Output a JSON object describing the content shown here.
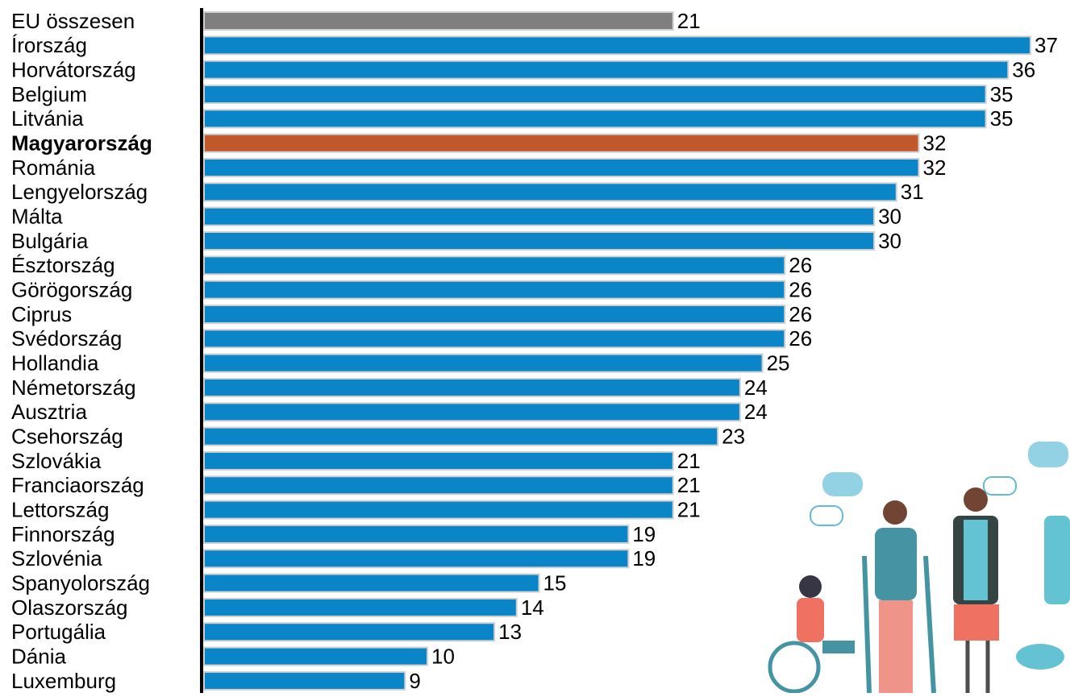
{
  "chart_data": {
    "type": "bar",
    "orientation": "horizontal",
    "categories": [
      "EU összesen",
      "Írország",
      "Horvátország",
      "Belgium",
      "Litvánia",
      "Magyarország",
      "Románia",
      "Lengyelország",
      "Málta",
      "Bulgária",
      "Észtország",
      "Görögország",
      "Ciprus",
      "Svédország",
      "Hollandia",
      "Németország",
      "Ausztria",
      "Csehország",
      "Szlovákia",
      "Franciaország",
      "Lettország",
      "Finnország",
      "Szlovénia",
      "Spanyolország",
      "Olaszország",
      "Portugália",
      "Dánia",
      "Luxemburg"
    ],
    "values": [
      21,
      37,
      36,
      35,
      35,
      32,
      32,
      31,
      30,
      30,
      26,
      26,
      26,
      26,
      25,
      24,
      24,
      23,
      21,
      21,
      21,
      19,
      19,
      15,
      14,
      13,
      10,
      9
    ],
    "colors": [
      "#7f7f7f",
      "#0a86c8",
      "#0a86c8",
      "#0a86c8",
      "#0a86c8",
      "#c0582b",
      "#0a86c8",
      "#0a86c8",
      "#0a86c8",
      "#0a86c8",
      "#0a86c8",
      "#0a86c8",
      "#0a86c8",
      "#0a86c8",
      "#0a86c8",
      "#0a86c8",
      "#0a86c8",
      "#0a86c8",
      "#0a86c8",
      "#0a86c8",
      "#0a86c8",
      "#0a86c8",
      "#0a86c8",
      "#0a86c8",
      "#0a86c8",
      "#0a86c8",
      "#0a86c8",
      "#0a86c8"
    ],
    "bold_category": "Magyarország",
    "xlim": [
      0,
      37
    ]
  }
}
